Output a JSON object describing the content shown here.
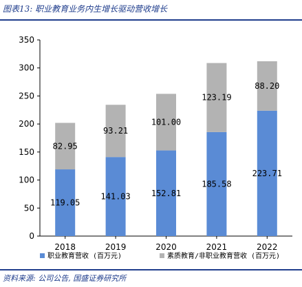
{
  "title": "图表13: 职业教育业务内生增长驱动营收增长",
  "source": "资料来源: 公司公告, 国盛证券研究所",
  "chart_data": {
    "type": "bar",
    "stacked": true,
    "categories": [
      "2018",
      "2019",
      "2020",
      "2021",
      "2022"
    ],
    "series": [
      {
        "name": "职业教育营收 (百万元)",
        "values": [
          119.05,
          141.03,
          152.81,
          185.58,
          223.71
        ],
        "color": "#5a8bd5",
        "labels": [
          "119.05",
          "141.03",
          "152.81",
          "185.58",
          "223.71"
        ]
      },
      {
        "name": "素质教育/非职业教育营收 (百万元)",
        "values": [
          82.95,
          93.21,
          101.0,
          123.19,
          88.2
        ],
        "color": "#b3b3b3",
        "labels": [
          "82.95",
          "93.21",
          "101.00",
          "123.19",
          "88.20"
        ]
      }
    ],
    "yticks": [
      "0",
      "50",
      "100",
      "150",
      "200",
      "250",
      "300",
      "350"
    ],
    "ylim": [
      0,
      350
    ],
    "legend_position": "bottom"
  }
}
